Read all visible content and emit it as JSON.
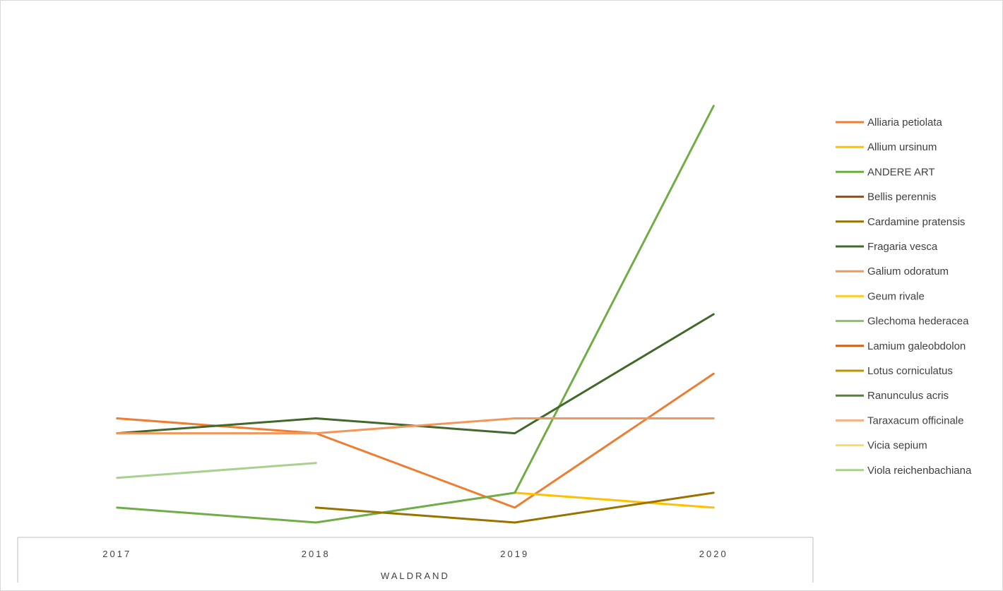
{
  "chart_data": {
    "type": "line",
    "title": "",
    "xlabel": "",
    "ylabel": "",
    "grid": false,
    "legend_position": "right",
    "category_group_label": "WALDRAND",
    "categories": [
      "2017",
      "2018",
      "2019",
      "2020"
    ],
    "ylim": [
      0,
      30
    ],
    "series": [
      {
        "name": "Alliaria petiolata",
        "color": "#ED7D31",
        "values": [
          7,
          6,
          1,
          10
        ]
      },
      {
        "name": "Allium ursinum",
        "color": "#FFC000",
        "values": [
          null,
          null,
          2,
          1
        ]
      },
      {
        "name": "ANDERE ART",
        "color": "#70AD47",
        "values": [
          1,
          0,
          2,
          28
        ]
      },
      {
        "name": "Bellis perennis",
        "color": "#9E480E",
        "values": [
          null,
          null,
          null,
          null
        ]
      },
      {
        "name": "Cardamine pratensis",
        "color": "#997300",
        "values": [
          null,
          1,
          0,
          2
        ]
      },
      {
        "name": "Fragaria vesca",
        "color": "#43682B",
        "values": [
          6,
          7,
          6,
          14
        ]
      },
      {
        "name": "Galium odoratum",
        "color": "#F1975A",
        "values": [
          6,
          6,
          7,
          7
        ]
      },
      {
        "name": "Geum rivale",
        "color": "#FFCD33",
        "values": [
          null,
          null,
          null,
          null
        ]
      },
      {
        "name": "Glechoma hederacea",
        "color": "#8CC168",
        "values": [
          null,
          null,
          null,
          null
        ]
      },
      {
        "name": "Lamium galeobdolon",
        "color": "#D26012",
        "values": [
          null,
          null,
          null,
          null
        ]
      },
      {
        "name": "Lotus corniculatus",
        "color": "#C09100",
        "values": [
          null,
          null,
          null,
          null
        ]
      },
      {
        "name": "Ranunculus acris",
        "color": "#548235",
        "values": [
          null,
          null,
          null,
          null
        ]
      },
      {
        "name": "Taraxacum officinale",
        "color": "#F4B183",
        "values": [
          null,
          null,
          null,
          null
        ]
      },
      {
        "name": "Vicia sepium",
        "color": "#FFD966",
        "values": [
          null,
          null,
          null,
          null
        ]
      },
      {
        "name": "Viola reichenbachiana",
        "color": "#A9D18E",
        "values": [
          3,
          4,
          null,
          null
        ]
      }
    ]
  }
}
